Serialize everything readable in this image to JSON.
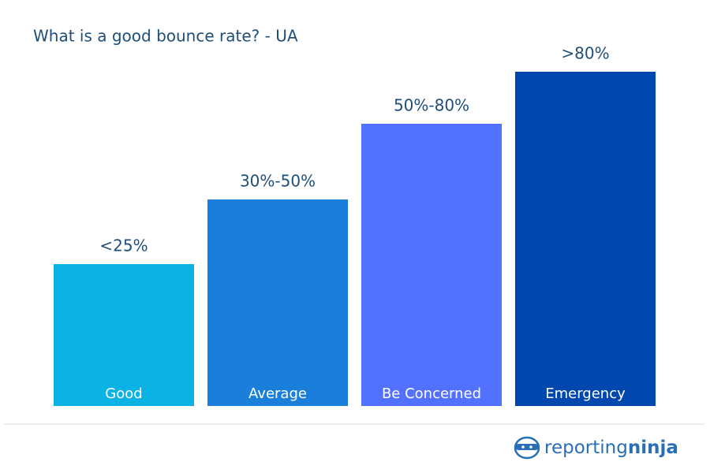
{
  "chart_data": {
    "type": "bar",
    "title": "What is a good bounce rate? - UA",
    "categories": [
      "Good",
      "Average",
      "Be Concerned",
      "Emergency"
    ],
    "value_labels": [
      "<25%",
      "30%-50%",
      "50%-80%",
      ">80%"
    ],
    "colors": [
      "#0ab3e3",
      "#1a7fdb",
      "#5271ff",
      "#0047b0"
    ]
  },
  "logo": {
    "first": "reporting",
    "second": "ninja"
  }
}
